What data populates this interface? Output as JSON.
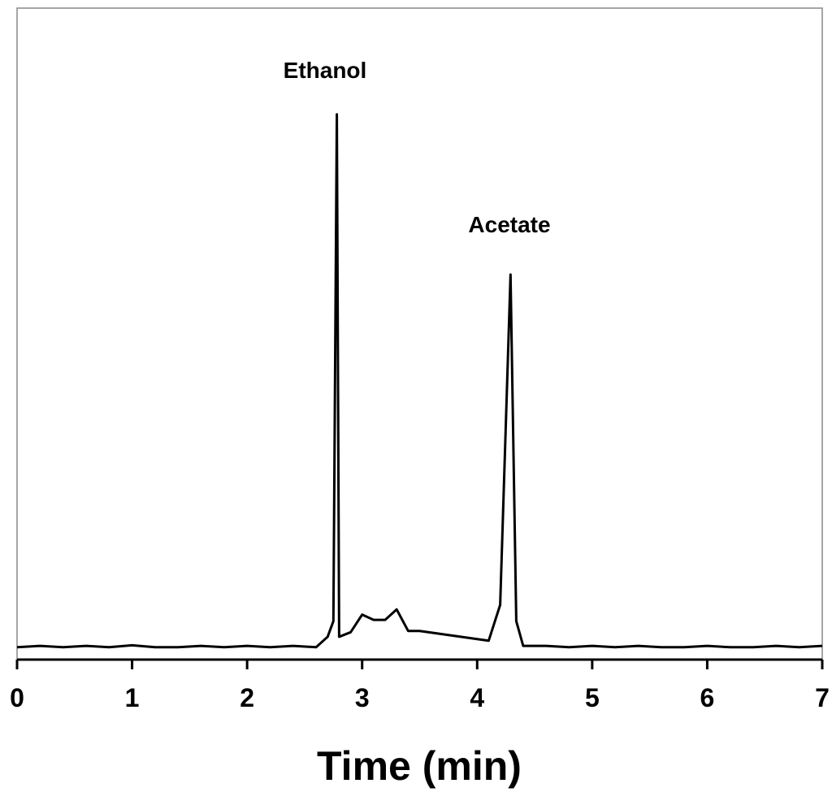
{
  "chart_data": {
    "type": "line",
    "x_label": "Time (min)",
    "annotations": [
      "Ethanol",
      "Acetate"
    ],
    "x": [
      0,
      0.2,
      0.4,
      0.6,
      0.8,
      1.0,
      1.2,
      1.4,
      1.6,
      1.8,
      2.0,
      2.2,
      2.4,
      2.6,
      2.7,
      2.75,
      2.78,
      2.8,
      2.9,
      3.0,
      3.1,
      3.2,
      3.3,
      3.4,
      3.5,
      4.1,
      4.2,
      4.29,
      4.34,
      4.4,
      4.6,
      4.8,
      5.0,
      5.2,
      5.4,
      5.6,
      5.8,
      6.0,
      6.2,
      6.4,
      6.6,
      6.8,
      7.0
    ],
    "values": [
      1.9,
      2.1,
      1.9,
      2.1,
      1.9,
      2.2,
      1.9,
      1.9,
      2.1,
      1.9,
      2.1,
      1.9,
      2.1,
      1.9,
      3.5,
      5.9,
      83.7,
      3.5,
      4.2,
      6.9,
      6.1,
      6.1,
      7.7,
      4.4,
      4.4,
      2.9,
      8.4,
      59.1,
      5.9,
      2.1,
      2.1,
      1.9,
      2.1,
      1.9,
      2.1,
      1.9,
      1.9,
      2.1,
      1.9,
      1.9,
      2.1,
      1.9,
      2.1
    ],
    "color": "#000000",
    "xlim": [
      0,
      7
    ],
    "xticks": [
      0,
      1,
      2,
      3,
      4,
      5,
      6,
      7
    ],
    "ylim": [
      0,
      100
    ]
  }
}
